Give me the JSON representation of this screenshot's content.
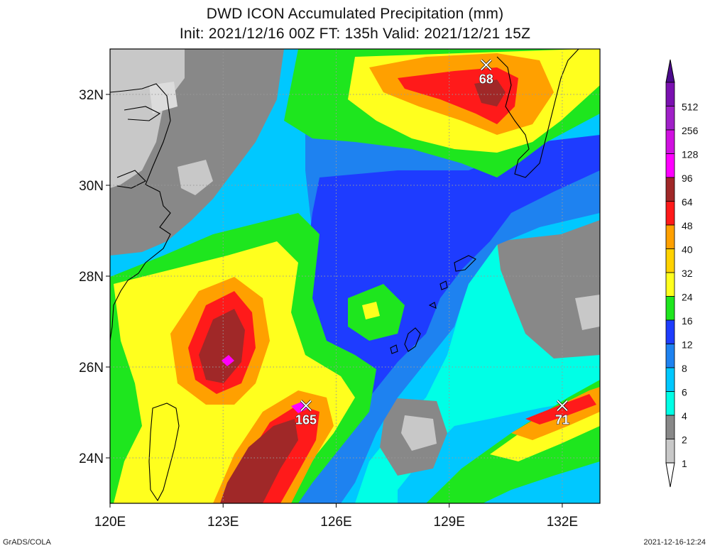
{
  "title_line1": "DWD ICON Accumulated Precipitation (mm)",
  "title_line2": "Init: 2021/12/16 00Z  FT: 135h  Valid: 2021/12/21 15Z",
  "footer_left": "GrADS/COLA",
  "footer_right": "2021-12-16-12:24",
  "map": {
    "lon_range": [
      120,
      133
    ],
    "lat_range": [
      23,
      33
    ],
    "lon_ticks": [
      {
        "value": 120,
        "label": "120E"
      },
      {
        "value": 123,
        "label": "123E"
      },
      {
        "value": 126,
        "label": "126E"
      },
      {
        "value": 129,
        "label": "129E"
      },
      {
        "value": 132,
        "label": "132E"
      }
    ],
    "lat_ticks": [
      {
        "value": 24,
        "label": "24N"
      },
      {
        "value": 26,
        "label": "26N"
      },
      {
        "value": 28,
        "label": "28N"
      },
      {
        "value": 30,
        "label": "30N"
      },
      {
        "value": 32,
        "label": "32N"
      }
    ],
    "maxima_markers": [
      {
        "lon": 129.98,
        "lat": 32.65,
        "label": "68"
      },
      {
        "lon": 125.2,
        "lat": 25.15,
        "label": "165"
      },
      {
        "lon": 132.0,
        "lat": 25.15,
        "label": "71"
      }
    ]
  },
  "colorbar": {
    "levels": [
      {
        "label": "512",
        "color": "#7a10b0"
      },
      {
        "label": "256",
        "color": "#a020c8"
      },
      {
        "label": "128",
        "color": "#d010e0"
      },
      {
        "label": "96",
        "color": "#ff00ff"
      },
      {
        "label": "64",
        "color": "#a02828"
      },
      {
        "label": "48",
        "color": "#ff1a1a"
      },
      {
        "label": "40",
        "color": "#ffa000"
      },
      {
        "label": "32",
        "color": "#ffd200"
      },
      {
        "label": "24",
        "color": "#ffff1e"
      },
      {
        "label": "16",
        "color": "#1ee61e"
      },
      {
        "label": "12",
        "color": "#1e3cff"
      },
      {
        "label": "8",
        "color": "#1e82f0"
      },
      {
        "label": "6",
        "color": "#00c8ff"
      },
      {
        "label": "4",
        "color": "#00ffe6"
      },
      {
        "label": "2",
        "color": "#888888"
      },
      {
        "label": "1",
        "color": "#c8c8c8"
      }
    ],
    "top_arrow_color": "#4b0a8c",
    "bottom_arrow_color": "#ffffff"
  }
}
